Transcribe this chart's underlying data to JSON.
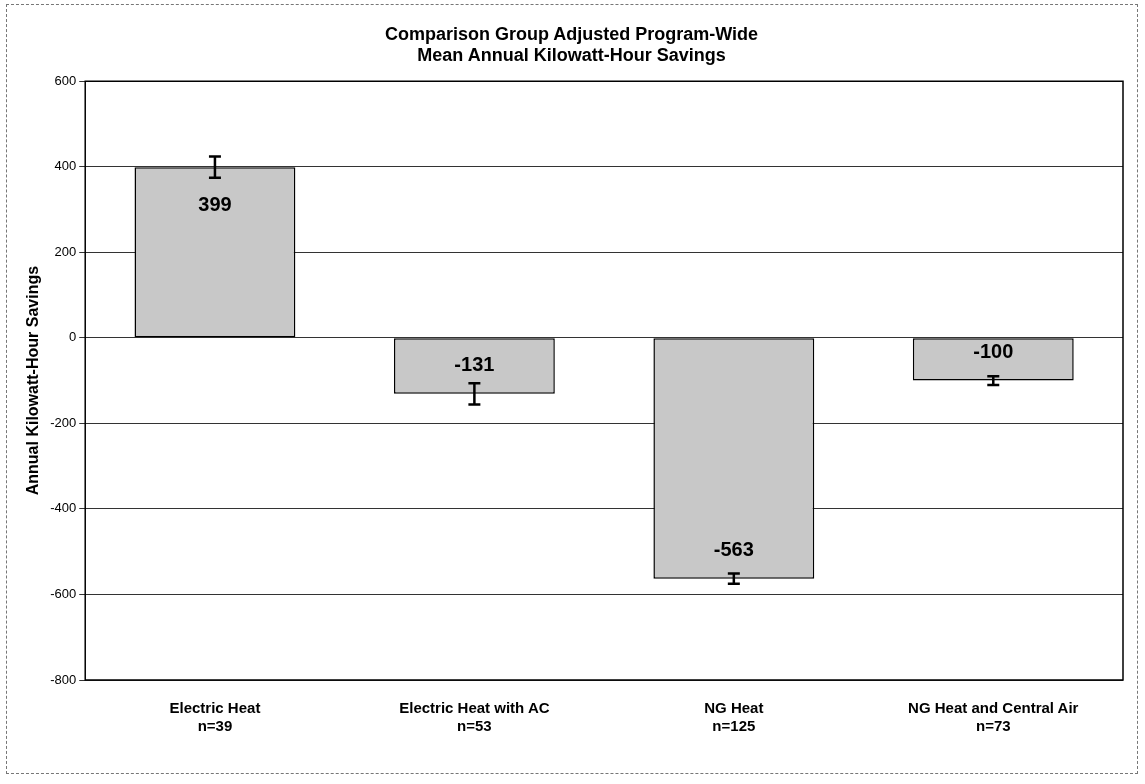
{
  "chart_data": {
    "type": "bar",
    "title": "Comparison Group Adjusted Program-Wide\nMean Annual Kilowatt-Hour Savings",
    "ylabel": "Annual Kilowatt-Hour Savings",
    "categories": [
      "Electric Heat\nn=39",
      "Electric Heat with AC\nn=53",
      "NG Heat\nn=125",
      "NG Heat and Central Air\nn=73"
    ],
    "values": [
      399,
      -131,
      -563,
      -100
    ],
    "errors": [
      25,
      25,
      12,
      10
    ],
    "color": "#c8c8c8",
    "ylim": [
      -800,
      600
    ],
    "yticks": [
      -800,
      -600,
      -400,
      -200,
      0,
      200,
      400,
      600
    ],
    "grid": "y",
    "data_labels": true,
    "legend": false
  }
}
